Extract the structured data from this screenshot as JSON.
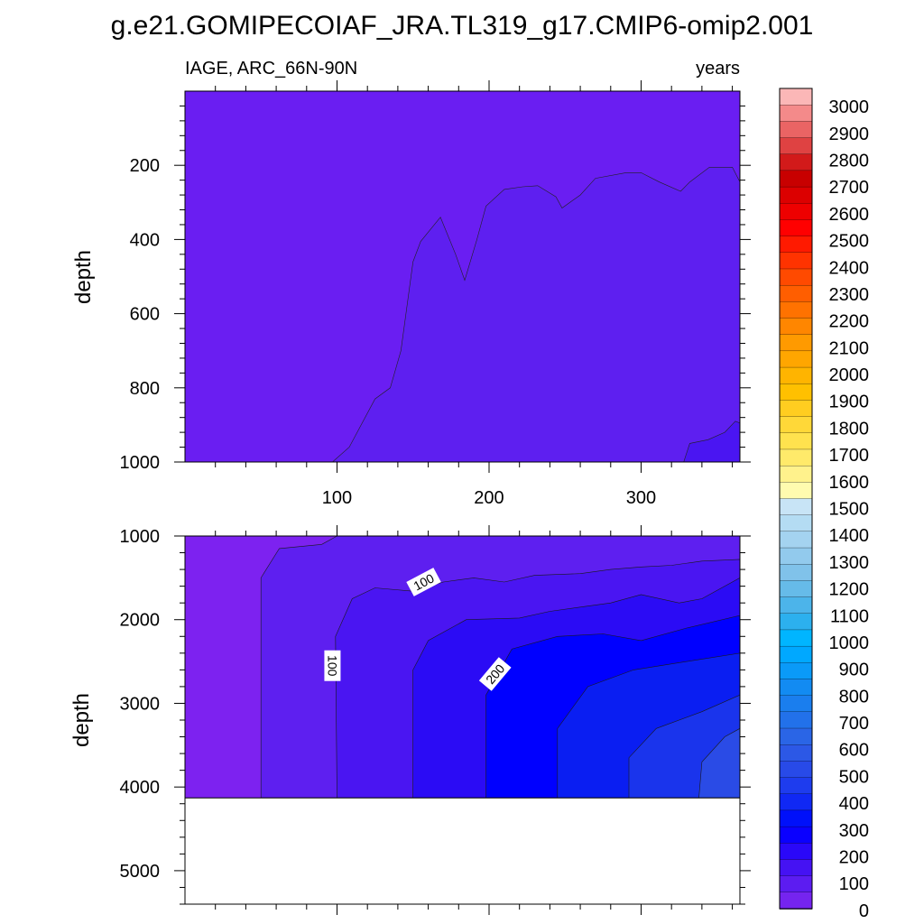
{
  "title": "g.e21.GOMIPECOIAF_JRA.TL319_g17.CMIP6-omip2.001",
  "colors": {
    "bg_top": "#6a1ef2",
    "palette": [
      "#7d22f0",
      "#5e1ff0",
      "#4a15f2",
      "#2b0bf5",
      "#0000ff",
      "#0a1ef2",
      "#1a34ec",
      "#2a4be6",
      "#3a5ee2"
    ]
  },
  "chart_data": [
    {
      "type": "contour",
      "name": "upper-panel",
      "left_label": "IAGE, ARC_66N-90N",
      "right_label": "years",
      "ylabel": "depth",
      "xlim": [
        0,
        365
      ],
      "ylim": [
        1000,
        0
      ],
      "x_ticks": [
        "100",
        "200",
        "300"
      ],
      "y_ticks": [
        "200",
        "400",
        "600",
        "800",
        "1000"
      ],
      "contour_levels": [
        0,
        100
      ],
      "upper_boundary_of_100_region": [
        [
          97,
          1000
        ],
        [
          108,
          960
        ],
        [
          125,
          830
        ],
        [
          135,
          800
        ],
        [
          142,
          700
        ],
        [
          150,
          460
        ],
        [
          155,
          405
        ],
        [
          168,
          340
        ],
        [
          178,
          440
        ],
        [
          184,
          510
        ],
        [
          192,
          400
        ],
        [
          198,
          310
        ],
        [
          210,
          265
        ],
        [
          222,
          258
        ],
        [
          232,
          255
        ],
        [
          244,
          285
        ],
        [
          248,
          315
        ],
        [
          260,
          280
        ],
        [
          270,
          235
        ],
        [
          290,
          220
        ],
        [
          300,
          220
        ],
        [
          312,
          245
        ],
        [
          326,
          270
        ],
        [
          332,
          245
        ],
        [
          345,
          205
        ],
        [
          360,
          205
        ],
        [
          365,
          245
        ]
      ],
      "deep_patch": [
        [
          328,
          1000
        ],
        [
          332,
          950
        ],
        [
          344,
          940
        ],
        [
          355,
          920
        ],
        [
          362,
          890
        ],
        [
          365,
          895
        ]
      ]
    },
    {
      "type": "contour",
      "name": "lower-panel",
      "ylabel": "depth",
      "xlim": [
        0,
        365
      ],
      "ylim": [
        5400,
        1000
      ],
      "data_bottom": 4130,
      "y_ticks": [
        "1000",
        "2000",
        "3000",
        "4000",
        "5000"
      ],
      "contour_levels": [
        0,
        100,
        200,
        300,
        400,
        500,
        600
      ],
      "contour_labels": [
        {
          "text": "100",
          "x": 157,
          "y": 1550,
          "angle": -28
        },
        {
          "text": "100",
          "x": 97,
          "y": 2550,
          "angle": 90
        },
        {
          "text": "200",
          "x": 204,
          "y": 2650,
          "angle": -50
        }
      ],
      "boundaries": [
        [
          [
            50,
            4130
          ],
          [
            50,
            1500
          ],
          [
            62,
            1150
          ],
          [
            90,
            1100
          ],
          [
            100,
            1000
          ]
        ],
        [
          [
            100,
            4130
          ],
          [
            99,
            2200
          ],
          [
            110,
            1750
          ],
          [
            125,
            1620
          ],
          [
            150,
            1660
          ],
          [
            170,
            1550
          ],
          [
            190,
            1500
          ],
          [
            210,
            1550
          ],
          [
            230,
            1470
          ],
          [
            260,
            1450
          ],
          [
            280,
            1400
          ],
          [
            300,
            1370
          ],
          [
            320,
            1350
          ],
          [
            340,
            1300
          ],
          [
            365,
            1280
          ]
        ],
        [
          [
            150,
            4130
          ],
          [
            150,
            2600
          ],
          [
            160,
            2250
          ],
          [
            185,
            2000
          ],
          [
            220,
            1980
          ],
          [
            240,
            1900
          ],
          [
            260,
            1850
          ],
          [
            280,
            1800
          ],
          [
            300,
            1700
          ],
          [
            325,
            1800
          ],
          [
            340,
            1750
          ],
          [
            365,
            1500
          ]
        ],
        [
          [
            198,
            4130
          ],
          [
            198,
            2900
          ],
          [
            215,
            2350
          ],
          [
            245,
            2200
          ],
          [
            275,
            2170
          ],
          [
            300,
            2250
          ],
          [
            330,
            2100
          ],
          [
            365,
            1950
          ]
        ],
        [
          [
            245,
            4130
          ],
          [
            245,
            3300
          ],
          [
            265,
            2800
          ],
          [
            295,
            2600
          ],
          [
            330,
            2500
          ],
          [
            365,
            2400
          ]
        ],
        [
          [
            292,
            4130
          ],
          [
            292,
            3650
          ],
          [
            310,
            3300
          ],
          [
            340,
            3100
          ],
          [
            365,
            2900
          ]
        ],
        [
          [
            338,
            4130
          ],
          [
            340,
            3700
          ],
          [
            355,
            3400
          ],
          [
            365,
            3300
          ]
        ]
      ]
    }
  ],
  "colorbar": {
    "labels": [
      "3000",
      "2900",
      "2800",
      "2700",
      "2600",
      "2500",
      "2400",
      "2300",
      "2200",
      "2100",
      "2000",
      "1900",
      "1800",
      "1700",
      "1600",
      "1500",
      "1400",
      "1300",
      "1200",
      "1100",
      "1000",
      "900",
      "800",
      "700",
      "600",
      "500",
      "400",
      "300",
      "200",
      "100",
      "0"
    ],
    "colors_top_to_bottom": [
      "#fbb7b7",
      "#f48a8a",
      "#ea6464",
      "#df4242",
      "#d21a1a",
      "#c80000",
      "#dc0000",
      "#ee0000",
      "#ff0000",
      "#ff1a00",
      "#ff3300",
      "#ff4a00",
      "#ff5e00",
      "#ff7200",
      "#ff8600",
      "#ff9a00",
      "#ffa600",
      "#ffb400",
      "#ffc000",
      "#ffcd20",
      "#ffd838",
      "#ffe24e",
      "#ffea6a",
      "#fff28c",
      "#fffbaf",
      "#c8e4f6",
      "#b4dcf3",
      "#a4d3f0",
      "#92caed",
      "#80c2ea",
      "#66bbe9",
      "#4cb4ea",
      "#2cb0ee",
      "#00b5ff",
      "#00a8ff",
      "#0a9af8",
      "#128bf2",
      "#1a7eee",
      "#2271ea",
      "#2a65e6",
      "#2c58e6",
      "#284ae8",
      "#1e3cee",
      "#1028f4",
      "#0010fa",
      "#0a00ff",
      "#2a08f8",
      "#4512f3",
      "#5c1cf1",
      "#7524ef"
    ]
  }
}
